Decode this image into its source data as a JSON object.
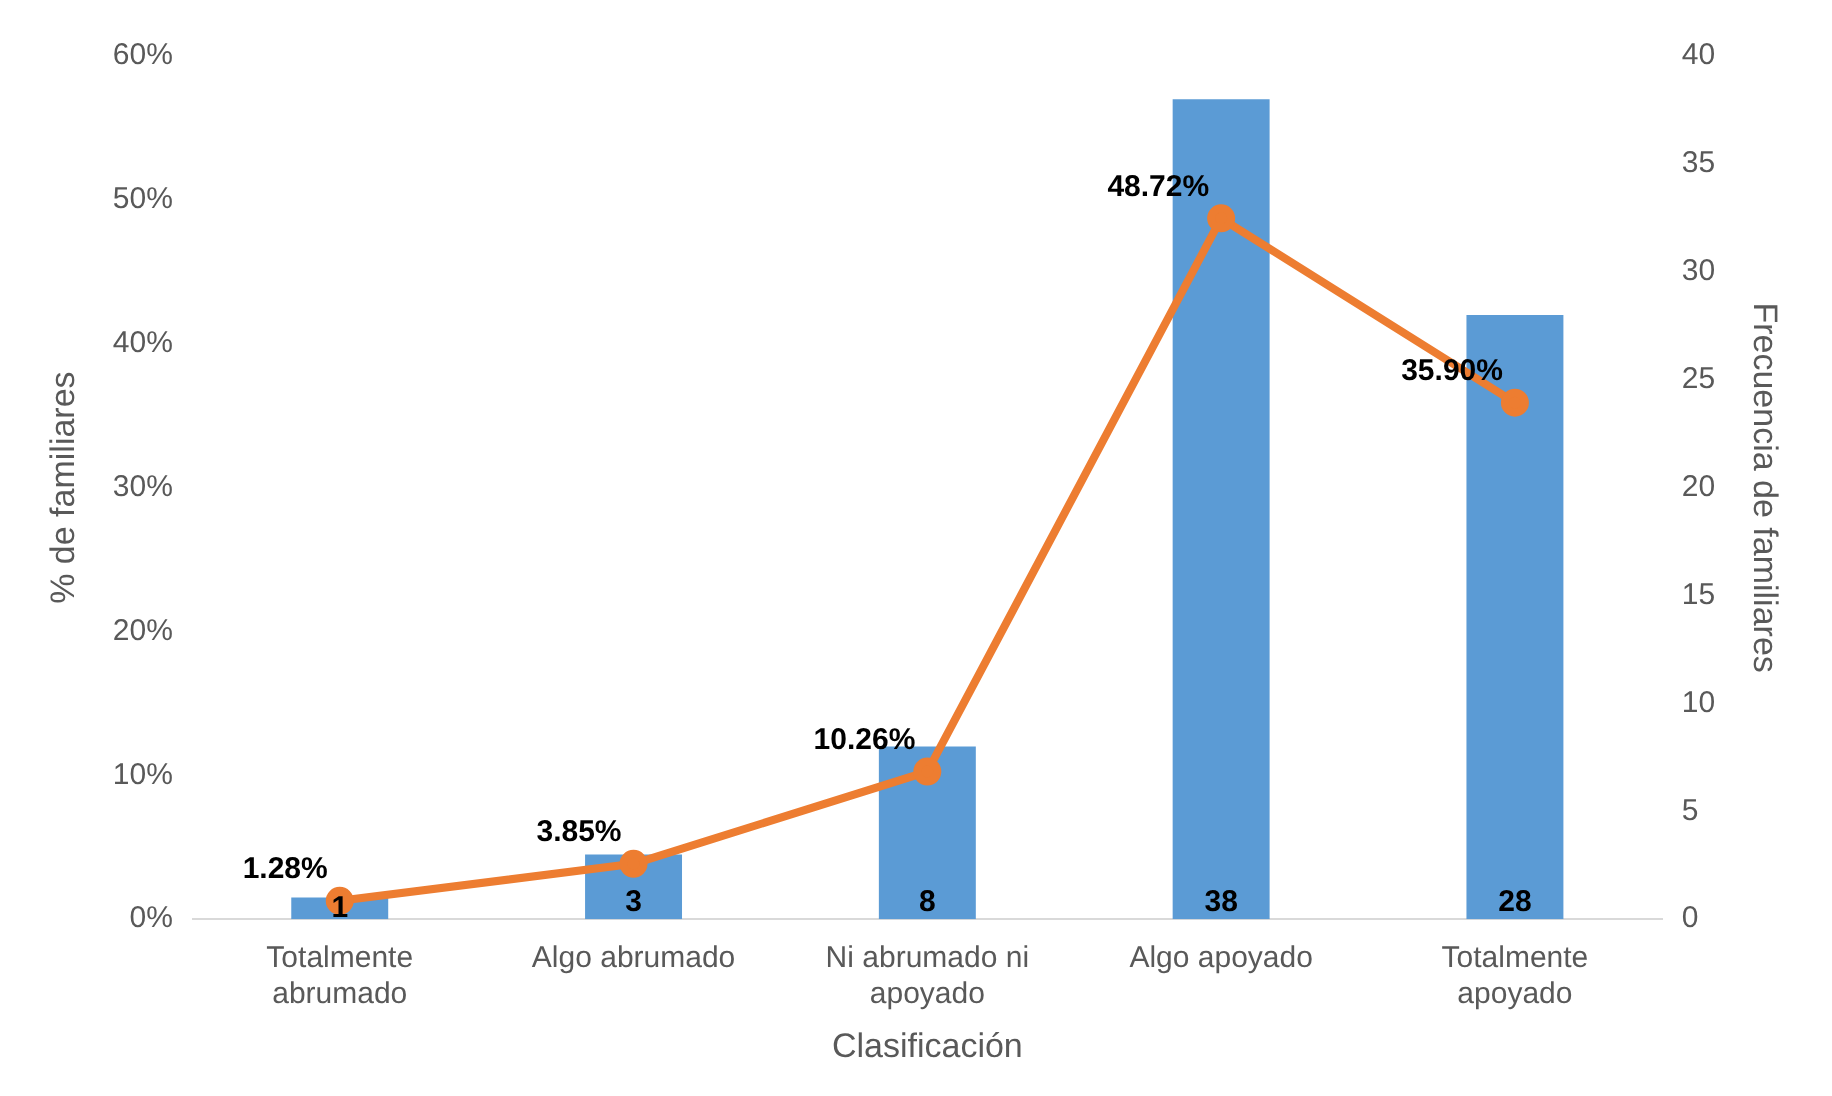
{
  "chart_data": {
    "type": "bar",
    "xlabel": "Clasificación",
    "ylabel": "% de familiares",
    "y2label": "Frecuencia de familiares",
    "categories": [
      "Totalmente abrumado",
      "Algo abrumado",
      "Ni abrumado ni apoyado",
      "Algo apoyado",
      "Totalmente apoyado"
    ],
    "series": [
      {
        "axis": "y2",
        "color": "#5b9bd5",
        "values": [
          1,
          3,
          8,
          38,
          28
        ],
        "value_labels": [
          "1",
          "3",
          "8",
          "38",
          "28"
        ]
      },
      {
        "type": "line",
        "axis": "y",
        "color": "#ed7d31",
        "marker": "circle",
        "values": [
          1.28,
          3.85,
          10.26,
          48.72,
          35.9
        ],
        "value_labels": [
          "1.28%",
          "3.85%",
          "10.26%",
          "48.72%",
          "35.90%"
        ]
      }
    ],
    "ylim": [
      0,
      60
    ],
    "yticks": [
      {
        "value": 0,
        "label": "0%"
      },
      {
        "value": 10,
        "label": "10%"
      },
      {
        "value": 20,
        "label": "20%"
      },
      {
        "value": 30,
        "label": "30%"
      },
      {
        "value": 40,
        "label": "40%"
      },
      {
        "value": 50,
        "label": "50%"
      },
      {
        "value": 60,
        "label": "60%"
      }
    ],
    "y2lim": [
      0,
      40
    ],
    "y2ticks": [
      0,
      5,
      10,
      15,
      20,
      25,
      30,
      35,
      40
    ],
    "grid": false,
    "legend": false
  }
}
